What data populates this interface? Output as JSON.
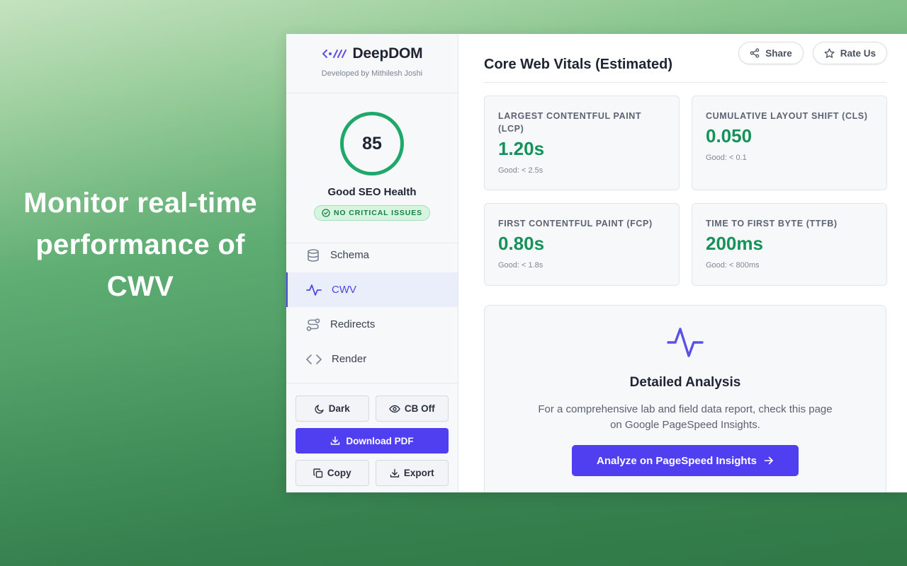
{
  "headline": "Monitor real-time performance of CWV",
  "brand": {
    "name": "DeepDOM",
    "subtitle": "Developed by Mithilesh Joshi",
    "logo_icon": "code-arrow-icon",
    "accent_color": "#4f46e5"
  },
  "score": {
    "value": "85",
    "label": "Good SEO Health",
    "badge": "NO CRITICAL ISSUES",
    "ring_color": "#1fa86a"
  },
  "nav": {
    "items": [
      {
        "label": "Schema",
        "icon": "database-icon",
        "active": false
      },
      {
        "label": "CWV",
        "icon": "activity-icon",
        "active": true
      },
      {
        "label": "Redirects",
        "icon": "route-icon",
        "active": false
      },
      {
        "label": "Render",
        "icon": "code-icon",
        "active": false
      }
    ]
  },
  "actions": {
    "dark": "Dark",
    "cb_off": "CB Off",
    "download_pdf": "Download PDF",
    "copy": "Copy",
    "export": "Export"
  },
  "header": {
    "title": "Core Web Vitals (Estimated)",
    "share": "Share",
    "rate_us": "Rate Us"
  },
  "metrics": [
    {
      "label": "LARGEST CONTENTFUL PAINT (LCP)",
      "value": "1.20s",
      "hint": "Good: < 2.5s"
    },
    {
      "label": "CUMULATIVE LAYOUT SHIFT (CLS)",
      "value": "0.050",
      "hint": "Good: < 0.1"
    },
    {
      "label": "FIRST CONTENTFUL PAINT (FCP)",
      "value": "0.80s",
      "hint": "Good: < 1.8s"
    },
    {
      "label": "TIME TO FIRST BYTE (TTFB)",
      "value": "200ms",
      "hint": "Good: < 800ms"
    }
  ],
  "analysis": {
    "title": "Detailed Analysis",
    "text": "For a comprehensive lab and field data report, check this page on Google PageSpeed Insights.",
    "button": "Analyze on PageSpeed Insights",
    "good_color": "#15915a",
    "primary_color": "#4f3ff0"
  }
}
